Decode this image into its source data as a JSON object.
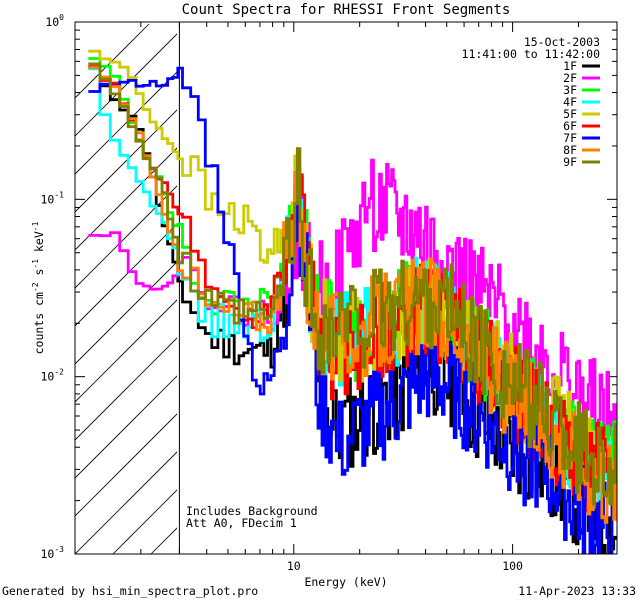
{
  "chart_data": {
    "type": "line",
    "title": "Count Spectra for RHESSI Front Segments",
    "xlabel": "Energy (keV)",
    "ylabel_base": "counts cm",
    "ylabel_exp1": "-2",
    "ylabel_mid": " s",
    "ylabel_exp2": "-1",
    "ylabel_end": " keV",
    "ylabel_exp3": "-1",
    "x_scale": "log",
    "y_scale": "log",
    "xlim": [
      1,
      300
    ],
    "ylim": [
      0.001,
      1
    ],
    "x_ticks": [
      {
        "value": 10,
        "label": "10"
      },
      {
        "value": 100,
        "label": "100"
      }
    ],
    "y_ticks": [
      {
        "value": 1,
        "base": "10",
        "exp": "0"
      },
      {
        "value": 0.1,
        "base": "10",
        "exp": "-1"
      },
      {
        "value": 0.01,
        "base": "10",
        "exp": "-2"
      },
      {
        "value": 0.001,
        "base": "10",
        "exp": "-3"
      }
    ],
    "hatched_region_x": [
      1,
      3
    ],
    "legend_date": "15-Oct-2003",
    "legend_time": "11:41:00 to 11:42:00",
    "annotation_lines": [
      "Includes Background",
      "Att A0, FDecim 1"
    ],
    "series": [
      {
        "name": "1F",
        "color": "#000000",
        "seed": 11,
        "pts": [
          [
            1.2,
            0.55
          ],
          [
            1.6,
            0.35
          ],
          [
            2.0,
            0.25
          ],
          [
            2.5,
            0.08
          ],
          [
            3.0,
            0.035
          ],
          [
            4.0,
            0.017
          ],
          [
            6.0,
            0.014
          ],
          [
            8.0,
            0.014
          ],
          [
            10.0,
            0.06
          ],
          [
            10.5,
            0.1
          ],
          [
            11.2,
            0.05
          ],
          [
            12.5,
            0.012
          ],
          [
            15,
            0.005
          ],
          [
            20,
            0.006
          ],
          [
            30,
            0.008
          ],
          [
            40,
            0.012
          ],
          [
            50,
            0.01
          ],
          [
            70,
            0.006
          ],
          [
            100,
            0.004
          ],
          [
            150,
            0.003
          ],
          [
            200,
            0.002
          ],
          [
            300,
            0.0012
          ]
        ]
      },
      {
        "name": "2F",
        "color": "#ff00ff",
        "seed": 22,
        "pts": [
          [
            1.2,
            0.065
          ],
          [
            1.55,
            0.065
          ],
          [
            1.8,
            0.04
          ],
          [
            2.2,
            0.03
          ],
          [
            2.7,
            0.035
          ],
          [
            3.0,
            0.04
          ],
          [
            3.5,
            0.035
          ],
          [
            5,
            0.025
          ],
          [
            8,
            0.022
          ],
          [
            10,
            0.05
          ],
          [
            10.5,
            0.09
          ],
          [
            11.5,
            0.04
          ],
          [
            14,
            0.03
          ],
          [
            18,
            0.05
          ],
          [
            22,
            0.1
          ],
          [
            28,
            0.08
          ],
          [
            40,
            0.06
          ],
          [
            60,
            0.035
          ],
          [
            80,
            0.025
          ],
          [
            100,
            0.02
          ],
          [
            150,
            0.012
          ],
          [
            200,
            0.008
          ],
          [
            300,
            0.005
          ]
        ]
      },
      {
        "name": "3F",
        "color": "#00ff00",
        "seed": 33,
        "pts": [
          [
            1.2,
            0.65
          ],
          [
            1.6,
            0.45
          ],
          [
            2.0,
            0.2
          ],
          [
            2.5,
            0.12
          ],
          [
            3.0,
            0.06
          ],
          [
            4.0,
            0.028
          ],
          [
            6.0,
            0.025
          ],
          [
            8.0,
            0.025
          ],
          [
            10.0,
            0.07
          ],
          [
            10.5,
            0.14
          ],
          [
            11.2,
            0.07
          ],
          [
            12.5,
            0.025
          ],
          [
            15,
            0.018
          ],
          [
            20,
            0.017
          ],
          [
            30,
            0.022
          ],
          [
            40,
            0.027
          ],
          [
            50,
            0.024
          ],
          [
            70,
            0.015
          ],
          [
            100,
            0.009
          ],
          [
            150,
            0.006
          ],
          [
            200,
            0.004
          ],
          [
            300,
            0.003
          ]
        ]
      },
      {
        "name": "4F",
        "color": "#00ffff",
        "seed": 44,
        "pts": [
          [
            1.2,
            0.6
          ],
          [
            1.4,
            0.27
          ],
          [
            1.8,
            0.15
          ],
          [
            2.2,
            0.1
          ],
          [
            2.6,
            0.07
          ],
          [
            3.0,
            0.045
          ],
          [
            4.0,
            0.022
          ],
          [
            6.0,
            0.018
          ],
          [
            8.0,
            0.02
          ],
          [
            10.0,
            0.06
          ],
          [
            10.5,
            0.11
          ],
          [
            11.2,
            0.05
          ],
          [
            12.5,
            0.018
          ],
          [
            15,
            0.015
          ],
          [
            20,
            0.018
          ],
          [
            30,
            0.022
          ],
          [
            40,
            0.026
          ],
          [
            50,
            0.022
          ],
          [
            70,
            0.014
          ],
          [
            100,
            0.008
          ],
          [
            150,
            0.005
          ],
          [
            200,
            0.0035
          ],
          [
            300,
            0.0025
          ]
        ]
      },
      {
        "name": "5F",
        "color": "#cccc00",
        "seed": 55,
        "pts": [
          [
            1.2,
            0.68
          ],
          [
            1.5,
            0.6
          ],
          [
            1.8,
            0.5
          ],
          [
            2.2,
            0.3
          ],
          [
            2.6,
            0.22
          ],
          [
            3.0,
            0.18
          ],
          [
            3.5,
            0.15
          ],
          [
            4.2,
            0.09
          ],
          [
            5.5,
            0.08
          ],
          [
            6.5,
            0.07
          ],
          [
            7.5,
            0.045
          ],
          [
            9.0,
            0.07
          ],
          [
            10.5,
            0.1
          ],
          [
            11.5,
            0.04
          ],
          [
            13,
            0.02
          ],
          [
            16,
            0.018
          ],
          [
            20,
            0.016
          ],
          [
            30,
            0.02
          ],
          [
            40,
            0.025
          ],
          [
            50,
            0.022
          ],
          [
            70,
            0.014
          ],
          [
            100,
            0.009
          ],
          [
            150,
            0.006
          ],
          [
            200,
            0.004
          ],
          [
            300,
            0.003
          ]
        ]
      },
      {
        "name": "6F",
        "color": "#ff0000",
        "seed": 66,
        "pts": [
          [
            1.2,
            0.55
          ],
          [
            1.5,
            0.45
          ],
          [
            1.8,
            0.3
          ],
          [
            2.2,
            0.15
          ],
          [
            2.6,
            0.12
          ],
          [
            3.0,
            0.08
          ],
          [
            3.5,
            0.06
          ],
          [
            4.0,
            0.03
          ],
          [
            5.5,
            0.02
          ],
          [
            7.0,
            0.02
          ],
          [
            9.0,
            0.04
          ],
          [
            10.5,
            0.12
          ],
          [
            11.5,
            0.05
          ],
          [
            13,
            0.015
          ],
          [
            16,
            0.012
          ],
          [
            20,
            0.015
          ],
          [
            30,
            0.02
          ],
          [
            40,
            0.025
          ],
          [
            50,
            0.02
          ],
          [
            70,
            0.013
          ],
          [
            100,
            0.008
          ],
          [
            150,
            0.005
          ],
          [
            200,
            0.0035
          ],
          [
            300,
            0.0025
          ]
        ]
      },
      {
        "name": "7F",
        "color": "#0000ff",
        "seed": 77,
        "pts": [
          [
            1.2,
            0.42
          ],
          [
            1.6,
            0.45
          ],
          [
            2.0,
            0.45
          ],
          [
            2.5,
            0.45
          ],
          [
            3.0,
            0.48
          ],
          [
            3.5,
            0.38
          ],
          [
            4.0,
            0.2
          ],
          [
            4.5,
            0.12
          ],
          [
            5.0,
            0.06
          ],
          [
            5.8,
            0.025
          ],
          [
            6.5,
            0.012
          ],
          [
            7.2,
            0.008
          ],
          [
            8.0,
            0.01
          ],
          [
            9.0,
            0.02
          ],
          [
            10.5,
            0.1
          ],
          [
            11.5,
            0.03
          ],
          [
            13,
            0.008
          ],
          [
            16,
            0.004
          ],
          [
            20,
            0.005
          ],
          [
            30,
            0.007
          ],
          [
            40,
            0.01
          ],
          [
            50,
            0.009
          ],
          [
            70,
            0.006
          ],
          [
            100,
            0.004
          ],
          [
            150,
            0.0028
          ],
          [
            200,
            0.0018
          ],
          [
            300,
            0.0012
          ]
        ]
      },
      {
        "name": "8F",
        "color": "#ff8000",
        "seed": 88,
        "pts": [
          [
            1.2,
            0.58
          ],
          [
            1.6,
            0.4
          ],
          [
            2.0,
            0.22
          ],
          [
            2.5,
            0.09
          ],
          [
            3.0,
            0.05
          ],
          [
            4.0,
            0.025
          ],
          [
            6.0,
            0.022
          ],
          [
            8.0,
            0.022
          ],
          [
            10.0,
            0.06
          ],
          [
            10.5,
            0.11
          ],
          [
            11.2,
            0.05
          ],
          [
            12.5,
            0.02
          ],
          [
            15,
            0.016
          ],
          [
            20,
            0.018
          ],
          [
            30,
            0.022
          ],
          [
            40,
            0.026
          ],
          [
            50,
            0.022
          ],
          [
            70,
            0.014
          ],
          [
            100,
            0.008
          ],
          [
            150,
            0.005
          ],
          [
            200,
            0.0035
          ],
          [
            300,
            0.0025
          ]
        ]
      },
      {
        "name": "9F",
        "color": "#808000",
        "seed": 99,
        "pts": [
          [
            1.2,
            0.6
          ],
          [
            1.6,
            0.38
          ],
          [
            2.0,
            0.2
          ],
          [
            2.5,
            0.12
          ],
          [
            3.0,
            0.05
          ],
          [
            4.0,
            0.025
          ],
          [
            6.0,
            0.022
          ],
          [
            8.0,
            0.022
          ],
          [
            10.0,
            0.06
          ],
          [
            10.5,
            0.12
          ],
          [
            11.2,
            0.05
          ],
          [
            12.5,
            0.02
          ],
          [
            15,
            0.018
          ],
          [
            20,
            0.02
          ],
          [
            30,
            0.025
          ],
          [
            40,
            0.028
          ],
          [
            50,
            0.025
          ],
          [
            70,
            0.015
          ],
          [
            100,
            0.009
          ],
          [
            150,
            0.006
          ],
          [
            200,
            0.004
          ],
          [
            300,
            0.003
          ]
        ]
      }
    ]
  },
  "footer": {
    "generated_by": "Generated by hsi_min_spectra_plot.pro",
    "datetime": "11-Apr-2023 13:33"
  }
}
